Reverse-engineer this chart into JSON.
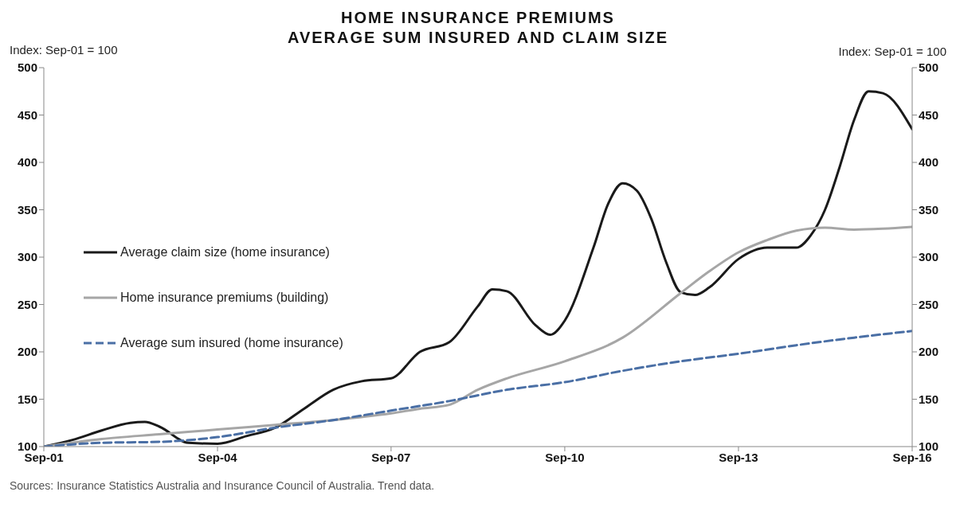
{
  "chart_data": {
    "type": "line",
    "title": "HOME INSURANCE PREMIUMS",
    "subtitle": "AVERAGE SUM INSURED AND CLAIM SIZE",
    "ylabel": "Index: Sep-01 = 100",
    "y2label": "Index: Sep-01 = 100",
    "annotations": [
      "Sources: Insurance Statistics Australia and Insurance Council of Australia. Trend data."
    ],
    "xlim": [
      "2001-09",
      "2016-09"
    ],
    "xticks": [
      {
        "value": "2001-09",
        "label": "Sep-01"
      },
      {
        "value": "2004-09",
        "label": "Sep-04"
      },
      {
        "value": "2007-09",
        "label": "Sep-07"
      },
      {
        "value": "2010-09",
        "label": "Sep-10"
      },
      {
        "value": "2013-09",
        "label": "Sep-13"
      },
      {
        "value": "2016-09",
        "label": "Sep-16"
      }
    ],
    "ylim": [
      100,
      500
    ],
    "yticks": [
      100,
      150,
      200,
      250,
      300,
      350,
      400,
      450,
      500
    ],
    "y2lim": [
      100,
      500
    ],
    "y2ticks": [
      100,
      150,
      200,
      250,
      300,
      350,
      400,
      450,
      500
    ],
    "legend": "left",
    "marker": "none",
    "series": [
      {
        "name": "Average claim size (home insurance)",
        "color": "#1a1a1a",
        "line_style": "solid",
        "x": [
          "2001-09",
          "2002-03",
          "2002-09",
          "2003-03",
          "2003-06",
          "2003-09",
          "2004-03",
          "2004-09",
          "2005-03",
          "2005-09",
          "2006-03",
          "2006-09",
          "2007-03",
          "2007-09",
          "2008-03",
          "2008-09",
          "2009-03",
          "2009-06",
          "2009-09",
          "2010-03",
          "2010-06",
          "2010-09",
          "2011-03",
          "2011-06",
          "2011-09",
          "2011-12",
          "2012-03",
          "2012-06",
          "2012-09",
          "2012-12",
          "2013-03",
          "2013-09",
          "2014-03",
          "2014-09",
          "2014-12",
          "2015-03",
          "2015-06",
          "2015-09",
          "2015-12",
          "2016-03",
          "2016-09"
        ],
        "values": [
          100,
          107,
          117,
          125,
          126,
          121,
          104,
          103,
          111,
          120,
          140,
          160,
          169,
          172,
          200,
          210,
          248,
          266,
          264,
          228,
          218,
          233,
          310,
          356,
          378,
          370,
          340,
          295,
          263,
          260,
          268,
          298,
          310,
          310,
          323,
          350,
          395,
          445,
          475,
          473,
          435
        ]
      },
      {
        "name": "Home insurance premiums (building)",
        "color": "#a6a6a6",
        "line_style": "solid",
        "x": [
          "2001-09",
          "2002-09",
          "2003-09",
          "2004-09",
          "2005-09",
          "2006-09",
          "2007-09",
          "2008-03",
          "2008-09",
          "2009-03",
          "2009-09",
          "2010-09",
          "2011-09",
          "2012-09",
          "2013-03",
          "2013-09",
          "2014-03",
          "2014-09",
          "2015-03",
          "2015-09",
          "2016-03",
          "2016-09"
        ],
        "values": [
          100,
          108,
          113,
          118,
          123,
          128,
          135,
          140,
          144,
          160,
          172,
          190,
          215,
          262,
          285,
          305,
          318,
          328,
          331,
          329,
          330,
          332
        ]
      },
      {
        "name": "Average sum insured (home insurance)",
        "color": "#4a6fa5",
        "line_style": "dashed",
        "x": [
          "2001-09",
          "2002-09",
          "2003-09",
          "2004-09",
          "2005-09",
          "2006-09",
          "2007-09",
          "2008-09",
          "2009-09",
          "2010-09",
          "2011-09",
          "2012-09",
          "2013-09",
          "2014-09",
          "2015-09",
          "2016-09"
        ],
        "values": [
          100,
          104,
          105,
          110,
          120,
          128,
          138,
          148,
          160,
          168,
          180,
          190,
          198,
          207,
          215,
          222
        ]
      }
    ]
  }
}
